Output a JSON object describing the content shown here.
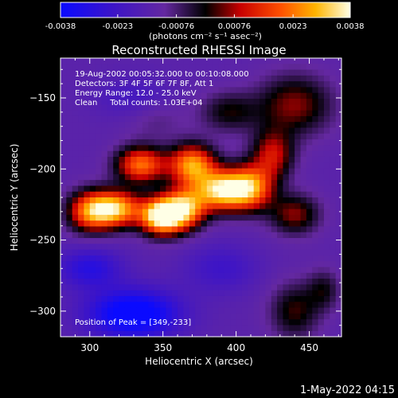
{
  "chart_data": {
    "type": "heatmap",
    "title": "Reconstructed RHESSI Image",
    "xlabel": "Heliocentric X (arcsec)",
    "ylabel": "Heliocentric Y (arcsec)",
    "xlim": [
      280,
      472
    ],
    "ylim": [
      -318,
      -122
    ],
    "x_ticks": [
      300,
      350,
      400,
      450
    ],
    "y_ticks": [
      -150,
      -200,
      -250,
      -300
    ],
    "colorbar": {
      "range": [
        -0.0038,
        0.0038
      ],
      "ticks": [
        -0.0038,
        -0.0023,
        -0.00076,
        0.00076,
        0.0023,
        0.0038
      ],
      "tick_labels": [
        "-0.0038",
        "-0.0023",
        "-0.00076",
        "0.00076",
        "0.0023",
        "0.0038"
      ],
      "unit_label": "(photons cm⁻² s⁻¹ asec⁻²)",
      "colormap": "blue-purple-red-yellow-white"
    },
    "annotations": {
      "time": "19-Aug-2002 00:05:32.000 to 00:10:08.000",
      "detectors": "Detectors: 3F 4F 5F 6F 7F 8F, Att 1",
      "energy": "Energy Range: 12.0 - 25.0 keV",
      "method": "Clean     Total counts: 1.03E+04",
      "peak": "Position of Peak = [349,-233]"
    },
    "peak": [
      349,
      -233
    ],
    "sources": [
      {
        "x": 349,
        "y": -233,
        "amp": 0.0056,
        "sx": 10,
        "sy": 9
      },
      {
        "x": 390,
        "y": -215,
        "amp": 0.0046,
        "sx": 13,
        "sy": 10
      },
      {
        "x": 410,
        "y": -213,
        "amp": 0.0036,
        "sx": 11,
        "sy": 11
      },
      {
        "x": 318,
        "y": -228,
        "amp": 0.0042,
        "sx": 12,
        "sy": 9
      },
      {
        "x": 300,
        "y": -230,
        "amp": 0.0034,
        "sx": 11,
        "sy": 10
      },
      {
        "x": 335,
        "y": -197,
        "amp": 0.0036,
        "sx": 12,
        "sy": 9
      },
      {
        "x": 370,
        "y": -197,
        "amp": 0.004,
        "sx": 11,
        "sy": 10
      },
      {
        "x": 365,
        "y": -228,
        "amp": 0.004,
        "sx": 10,
        "sy": 10
      },
      {
        "x": 425,
        "y": -190,
        "amp": 0.0024,
        "sx": 10,
        "sy": 12
      },
      {
        "x": 440,
        "y": -232,
        "amp": 0.002,
        "sx": 12,
        "sy": 10
      },
      {
        "x": 440,
        "y": -155,
        "amp": 0.002,
        "sx": 18,
        "sy": 15
      },
      {
        "x": 395,
        "y": -160,
        "amp": 0.0014,
        "sx": 14,
        "sy": 10
      },
      {
        "x": 345,
        "y": -165,
        "amp": 0.0006,
        "sx": 14,
        "sy": 10
      },
      {
        "x": 440,
        "y": -300,
        "amp": 0.0016,
        "sx": 12,
        "sy": 14
      },
      {
        "x": 460,
        "y": -285,
        "amp": 0.0012,
        "sx": 8,
        "sy": 10
      },
      {
        "x": 330,
        "y": -302,
        "amp": -0.003,
        "sx": 22,
        "sy": 12
      },
      {
        "x": 300,
        "y": -270,
        "amp": -0.0016,
        "sx": 16,
        "sy": 10
      },
      {
        "x": 330,
        "y": -150,
        "amp": -0.0008,
        "sx": 18,
        "sy": 10
      },
      {
        "x": 390,
        "y": -270,
        "amp": -0.001,
        "sx": 18,
        "sy": 12
      }
    ],
    "grid_size": 48
  },
  "footer": {
    "date": "1-May-2022 04:15"
  }
}
